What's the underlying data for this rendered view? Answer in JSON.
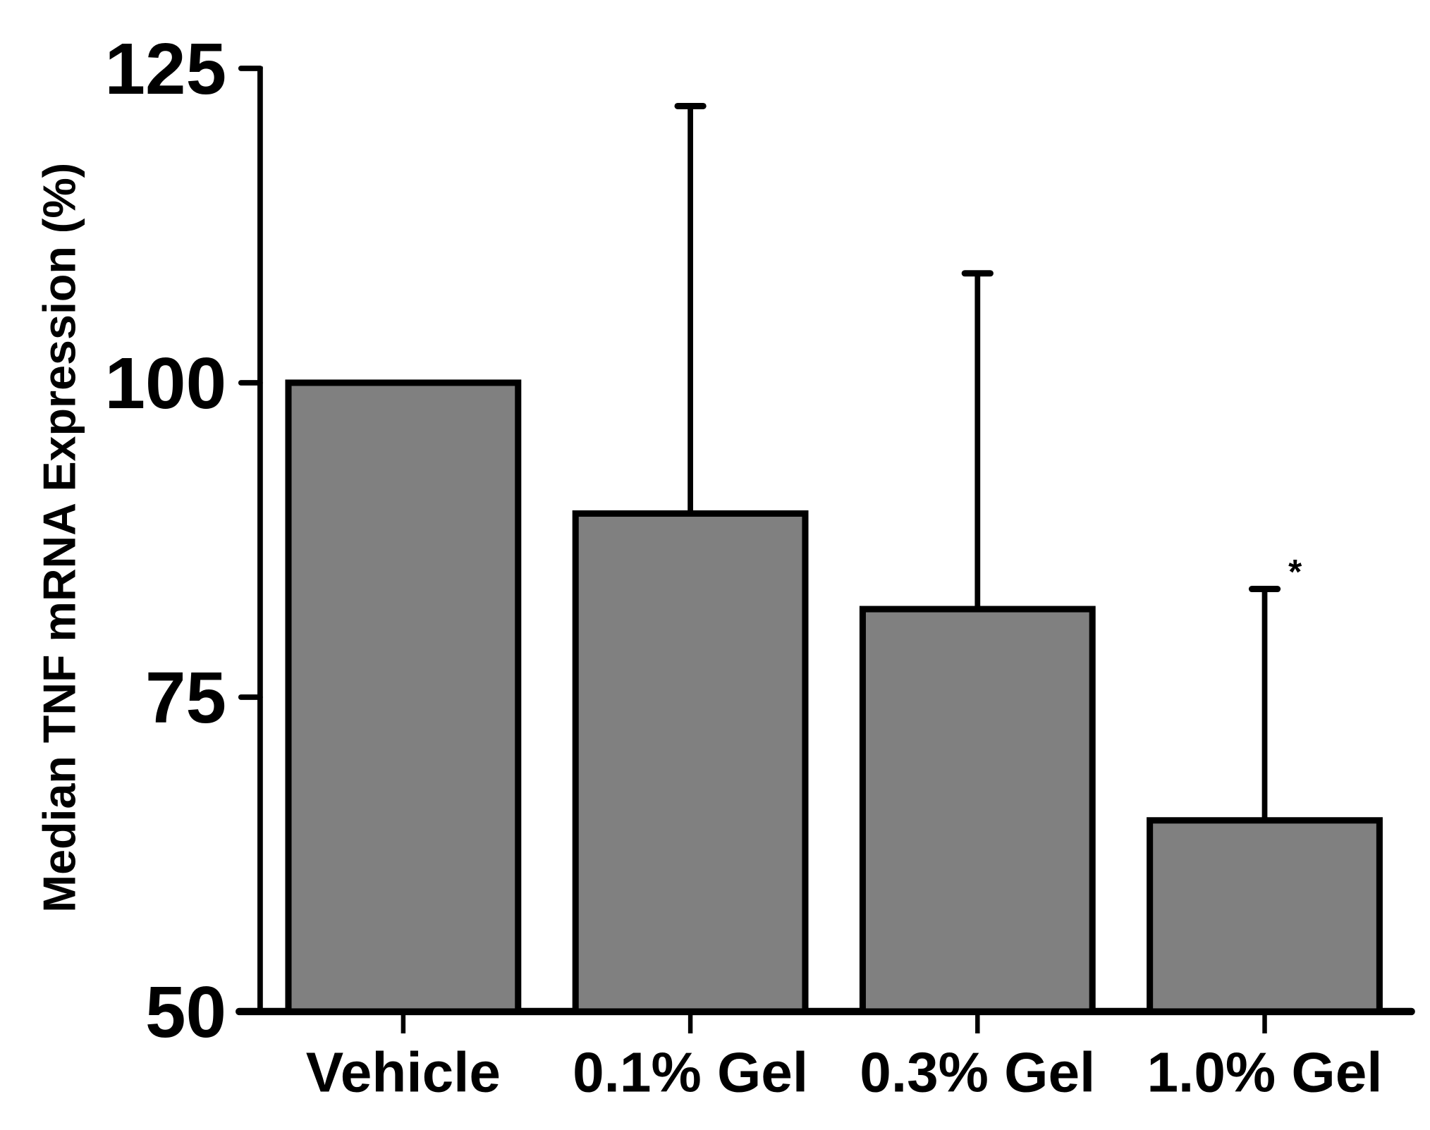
{
  "chart_data": {
    "type": "bar",
    "title": "",
    "xlabel": "",
    "ylabel": "Median TNF mRNA Expression (%)",
    "categories": [
      "Vehicle",
      "0.1% Gel",
      "0.3% Gel",
      "1.0% Gel"
    ],
    "values": [
      100,
      89.6,
      82.0,
      65.2
    ],
    "error_upper": [
      100,
      122.0,
      108.7,
      83.6
    ],
    "annotations": [
      {
        "category": "1.0% Gel",
        "text": "*"
      }
    ],
    "ylim": [
      50,
      125
    ],
    "yticks": [
      "50",
      "75",
      "100",
      "125"
    ],
    "grid": false,
    "legend": null,
    "colors": {
      "bar_fill": "#808080",
      "bar_edge": "#000000"
    }
  }
}
